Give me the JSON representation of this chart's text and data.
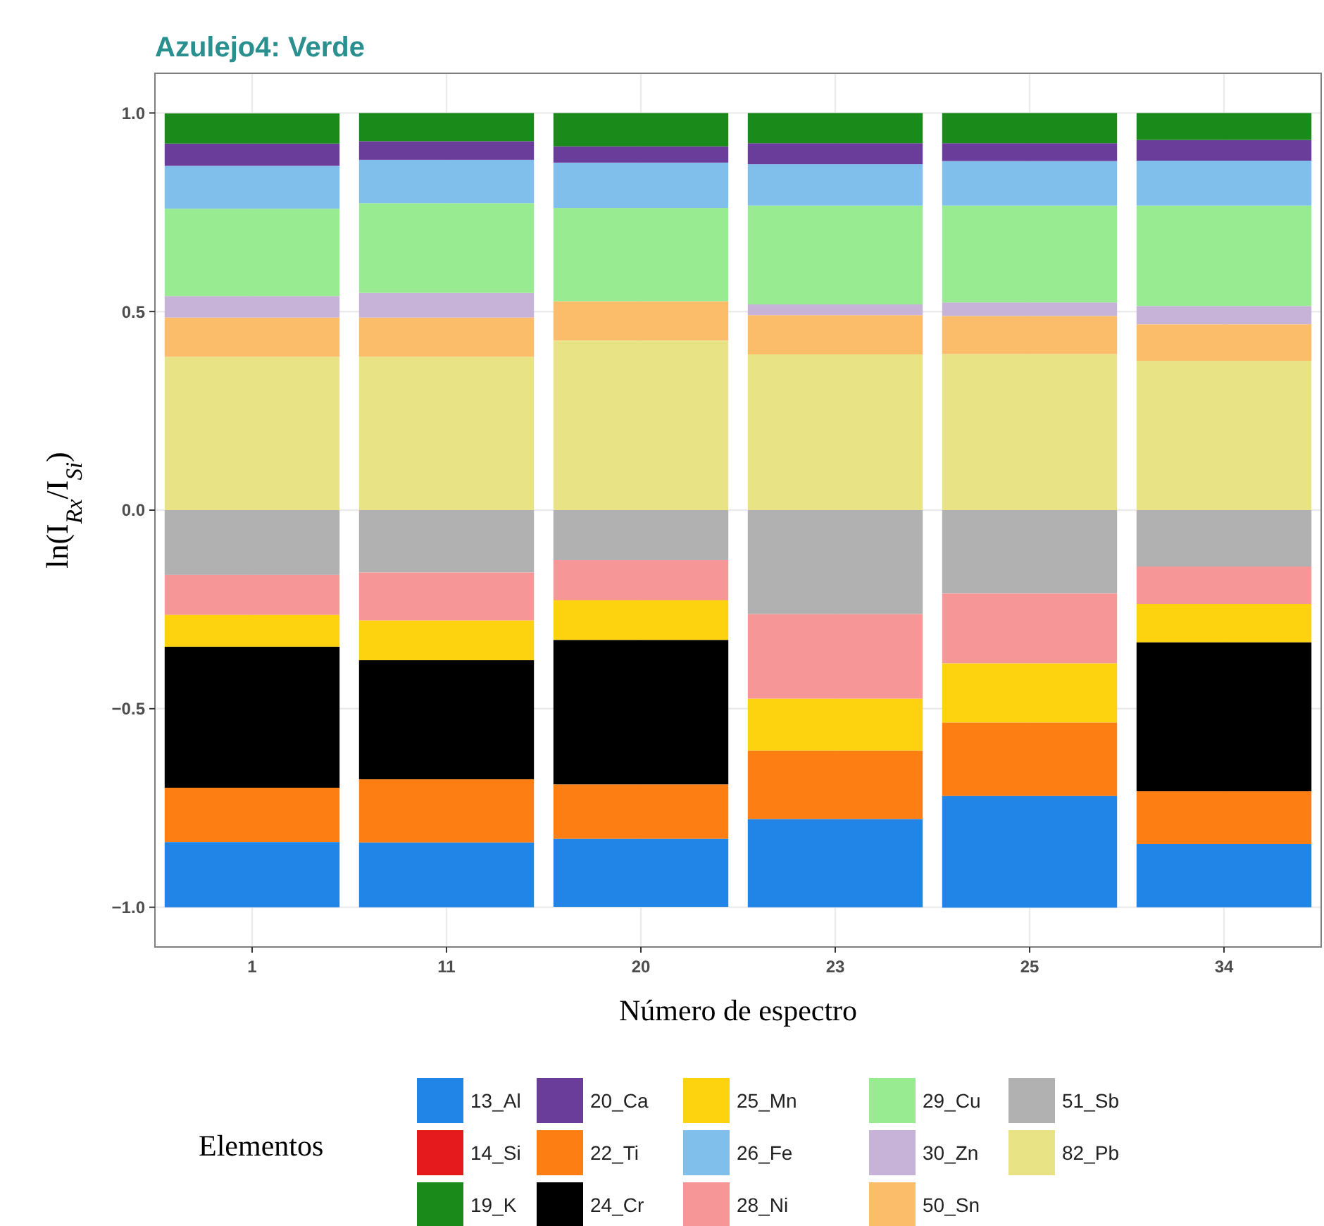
{
  "chart_data": {
    "type": "bar",
    "title": "Azulejo4: Verde",
    "xlabel": "Número de espectro",
    "ylabel": "ln(I$_{Rx}$/I$_{Si}$)",
    "legend_title": "Elementos",
    "stacked": true,
    "categories": [
      "1",
      "11",
      "20",
      "23",
      "25",
      "34"
    ],
    "series": [
      {
        "name": "82_Pb",
        "color": "#e8e485",
        "values": [
          0.386,
          0.386,
          0.427,
          0.392,
          0.393,
          0.376
        ]
      },
      {
        "name": "51_Sb",
        "color": "#b1b1b1",
        "values": [
          -0.163,
          -0.157,
          -0.126,
          -0.262,
          -0.21,
          -0.142
        ]
      },
      {
        "name": "50_Sn",
        "color": "#fbbd6a",
        "values": [
          0.099,
          0.099,
          0.099,
          0.099,
          0.096,
          0.092
        ]
      },
      {
        "name": "30_Zn",
        "color": "#c7b3d8",
        "values": [
          0.054,
          0.062,
          0,
          0.027,
          0.034,
          0.046
        ]
      },
      {
        "name": "29_Cu",
        "color": "#98eb90",
        "values": [
          0.22,
          0.226,
          0.235,
          0.249,
          0.244,
          0.253
        ]
      },
      {
        "name": "28_Ni",
        "color": "#f79696",
        "values": [
          -0.101,
          -0.121,
          -0.101,
          -0.213,
          -0.176,
          -0.094
        ]
      },
      {
        "name": "26_Fe",
        "color": "#80bfec",
        "values": [
          0.108,
          0.109,
          0.114,
          0.104,
          0.112,
          0.113
        ]
      },
      {
        "name": "25_Mn",
        "color": "#fdd20e",
        "values": [
          -0.08,
          -0.1,
          -0.1,
          -0.131,
          -0.149,
          -0.097
        ]
      },
      {
        "name": "24_Cr",
        "color": "#000000",
        "values": [
          -0.355,
          -0.3,
          -0.364,
          0,
          0,
          -0.375
        ]
      },
      {
        "name": "22_Ti",
        "color": "#fd7f14",
        "values": [
          -0.137,
          -0.159,
          -0.137,
          -0.172,
          -0.185,
          -0.133
        ]
      },
      {
        "name": "20_Ca",
        "color": "#6a3d9a",
        "values": [
          0.056,
          0.047,
          0.041,
          0.053,
          0.045,
          0.052
        ]
      },
      {
        "name": "19_K",
        "color": "#1a8a1a",
        "values": [
          0.076,
          0.071,
          0.084,
          0.076,
          0.076,
          0.068
        ]
      },
      {
        "name": "14_Si",
        "color": "#e41a1c",
        "values": [
          0,
          0,
          0,
          0,
          0,
          0
        ]
      },
      {
        "name": "13_Al",
        "color": "#2185e8",
        "values": [
          -0.164,
          -0.163,
          -0.171,
          -0.222,
          -0.281,
          -0.159
        ]
      }
    ],
    "ylim": [
      -1.1,
      1.1
    ],
    "yticks": [
      {
        "value": -1,
        "label": "−1.0"
      },
      {
        "value": -0.5,
        "label": "−0.5"
      },
      {
        "value": 0,
        "label": "0.0"
      },
      {
        "value": 0.5,
        "label": "0.5"
      },
      {
        "value": 1,
        "label": "1.0"
      }
    ],
    "grid": true,
    "legend": "bottom"
  }
}
